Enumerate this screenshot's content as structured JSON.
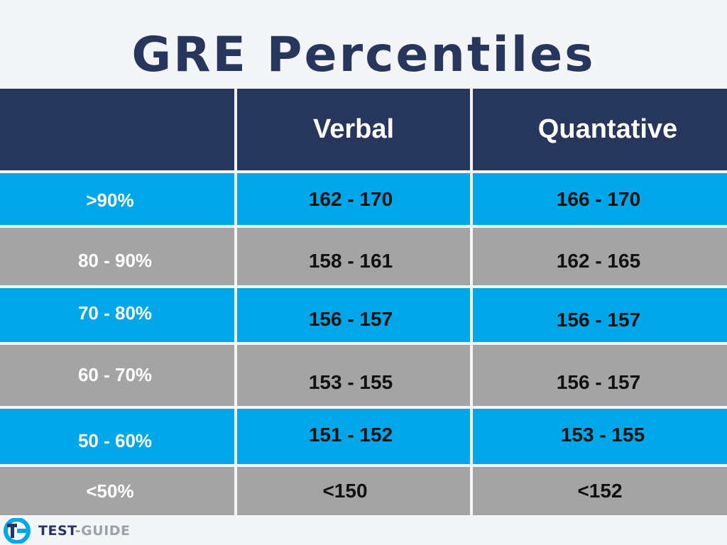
{
  "title": "GRE Percentiles",
  "colors": {
    "navy": "#27365c",
    "blue": "#00a8e9",
    "gray": "#a4a4a4"
  },
  "table": {
    "headers": [
      "",
      "Verbal",
      "Quantative"
    ],
    "rows": [
      {
        "label": ">90%",
        "verbal": "162 - 170",
        "quant": "166 - 170"
      },
      {
        "label": "80 - 90%",
        "verbal": "158 - 161",
        "quant": "162 - 165"
      },
      {
        "label": "70 - 80%",
        "verbal": "156 - 157",
        "quant": "156 - 157"
      },
      {
        "label": "60 - 70%",
        "verbal": "153 - 155",
        "quant": "156 - 157"
      },
      {
        "label": "50 - 60%",
        "verbal": "151 - 152",
        "quant": "153 - 155"
      },
      {
        "label": "<50%",
        "verbal": "<150",
        "quant": "<152"
      }
    ]
  },
  "brand": {
    "part1": "TEST",
    "part2": "-GUIDE",
    "logo_icon": "tg-logo-icon"
  }
}
